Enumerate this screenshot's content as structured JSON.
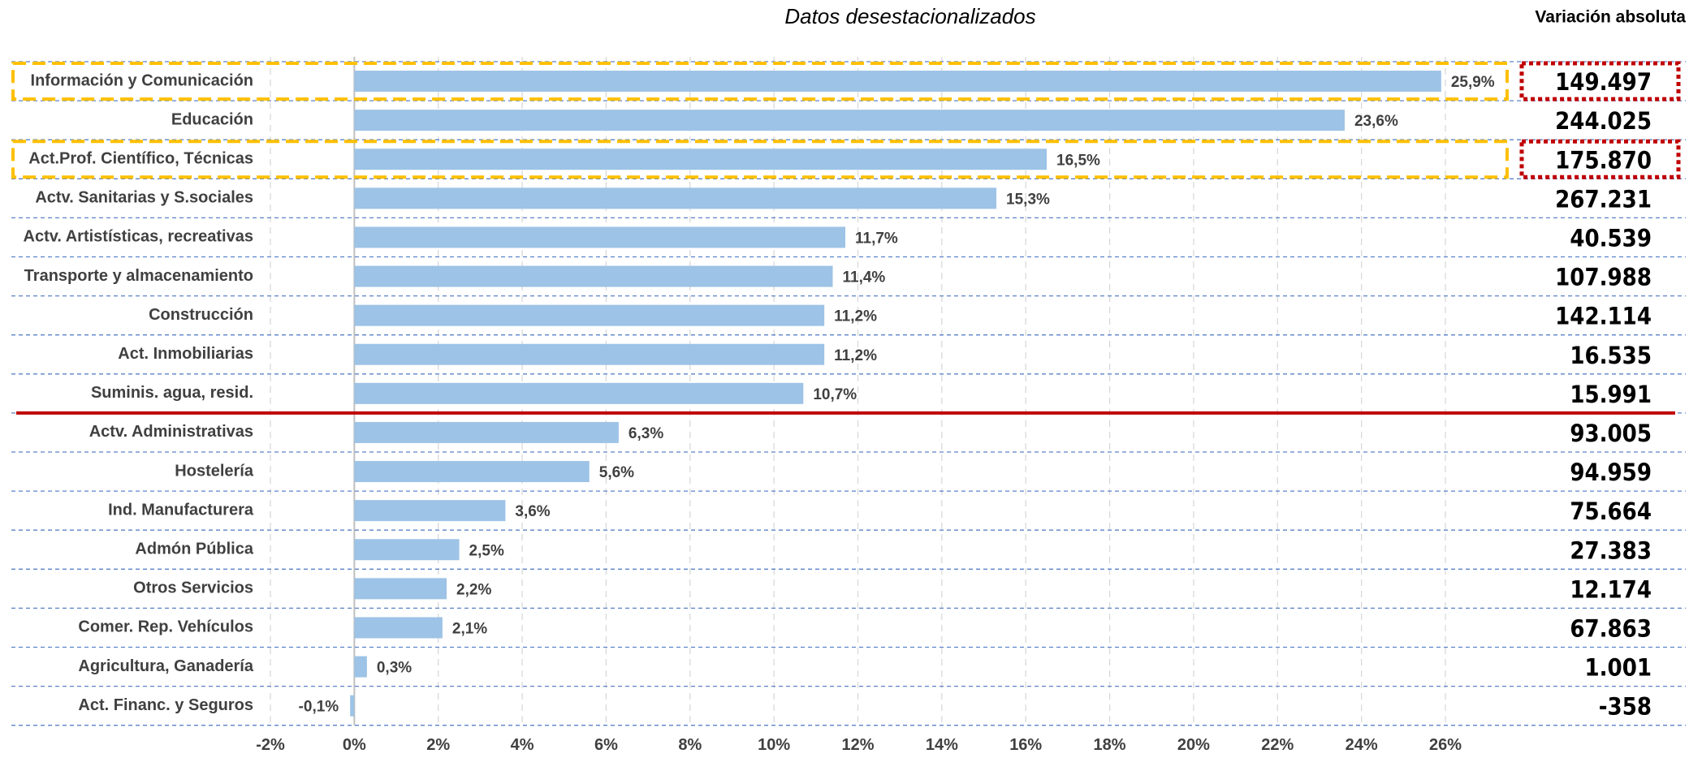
{
  "chart_data": {
    "type": "barh",
    "title": "Datos desestacionalizados",
    "categories": [
      "Información y Comunicación",
      "Educación",
      "Act.Prof. Científico, Técnicas",
      "Actv. Sanitarias y S.sociales",
      "Actv. Artistísticas, recreativas",
      "Transporte y almacenamiento",
      "Construcción",
      "Act. Inmobiliarias",
      "Suminis. agua, resid.",
      "Actv. Administrativas",
      "Hostelería",
      "Ind. Manufacturera",
      "Admón Pública",
      "Otros Servicios",
      "Comer. Rep. Vehículos",
      "Agricultura, Ganadería",
      "Act. Financ. y Seguros"
    ],
    "values": [
      25.9,
      23.6,
      16.5,
      15.3,
      11.7,
      11.4,
      11.2,
      11.2,
      10.7,
      6.3,
      5.6,
      3.6,
      2.5,
      2.2,
      2.1,
      0.3,
      -0.1
    ],
    "value_labels": [
      "25,9%",
      "23,6%",
      "16,5%",
      "15,3%",
      "11,7%",
      "11,4%",
      "11,2%",
      "11,2%",
      "10,7%",
      "6,3%",
      "5,6%",
      "3,6%",
      "2,5%",
      "2,2%",
      "2,1%",
      "0,3%",
      "-0,1%"
    ],
    "color": "#9dc3e6",
    "xlim": [
      -2,
      26
    ],
    "xticks": [
      {
        "value": -2,
        "label": "-2%"
      },
      {
        "value": 0,
        "label": "0%"
      },
      {
        "value": 2,
        "label": "2%"
      },
      {
        "value": 4,
        "label": "4%"
      },
      {
        "value": 6,
        "label": "6%"
      },
      {
        "value": 8,
        "label": "8%"
      },
      {
        "value": 10,
        "label": "10%"
      },
      {
        "value": 12,
        "label": "12%"
      },
      {
        "value": 14,
        "label": "14%"
      },
      {
        "value": 16,
        "label": "16%"
      },
      {
        "value": 18,
        "label": "18%"
      },
      {
        "value": 20,
        "label": "20%"
      },
      {
        "value": 22,
        "label": "22%"
      },
      {
        "value": 24,
        "label": "24%"
      },
      {
        "value": 26,
        "label": "26%"
      }
    ],
    "grid": true,
    "highlight_rows": [
      0,
      2
    ],
    "separator_after": 8,
    "absolute_variation": {
      "title": "Variación absoluta",
      "values": [
        149497,
        244025,
        175870,
        267231,
        40539,
        107988,
        142114,
        16535,
        15991,
        93005,
        94959,
        75664,
        27383,
        12174,
        67863,
        1001,
        -358
      ],
      "value_labels": [
        "149.497",
        "244.025",
        "175.870",
        "267.231",
        "40.539",
        "107.988",
        "142.114",
        "16.535",
        "15.991",
        "93.005",
        "94.959",
        "75.664",
        "27.383",
        "12.174",
        "67.863",
        "1.001",
        "-358"
      ]
    }
  }
}
